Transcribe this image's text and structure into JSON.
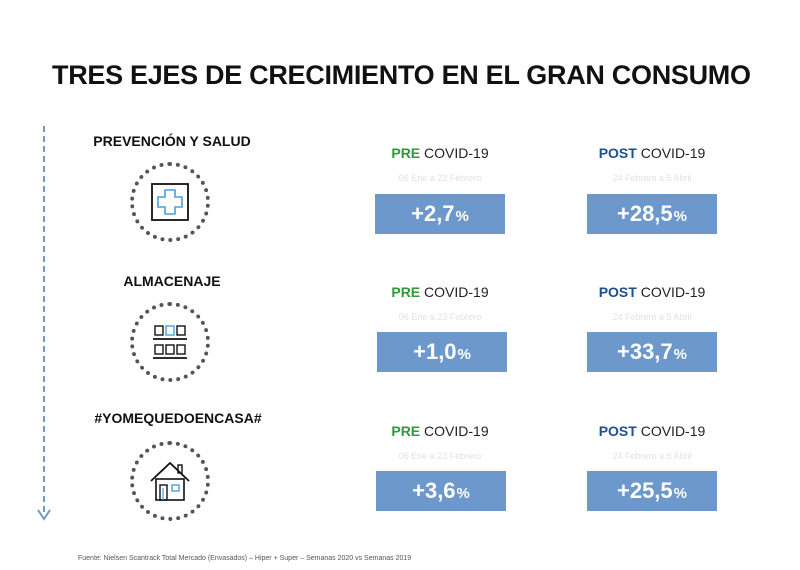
{
  "title": "TRES EJES DE CRECIMIENTO EN EL GRAN CONSUMO",
  "colors": {
    "box": "#6c98cc",
    "pre": "#2e9a3a",
    "post": "#1f4f8f",
    "arrow": "#6f99c9"
  },
  "axes": [
    {
      "label": "PREVENCIÓN Y SALUD",
      "icon": "medical-cross-icon",
      "pre": {
        "tag": "PRE",
        "covid": " COVID-19",
        "dates": "06 Ene a 23 Febrero",
        "value": "+2,7",
        "unit": "%"
      },
      "post": {
        "tag": "POST",
        "covid": " COVID-19",
        "dates": "24 Febrero a 5 Abril",
        "value": "+28,5",
        "unit": "%"
      }
    },
    {
      "label": "ALMACENAJE",
      "icon": "storage-shelves-icon",
      "pre": {
        "tag": "PRE",
        "covid": " COVID-19",
        "dates": "06 Ene a 23 Febrero",
        "value": "+1,0",
        "unit": "%"
      },
      "post": {
        "tag": "POST",
        "covid": " COVID-19",
        "dates": "24 Febrero a 5 Abril",
        "value": "+33,7",
        "unit": "%"
      }
    },
    {
      "label": "#YOMEQUEDOENCASA#",
      "icon": "house-icon",
      "pre": {
        "tag": "PRE",
        "covid": " COVID-19",
        "dates": "06 Ene a 23 Febrero",
        "value": "+3,6",
        "unit": "%"
      },
      "post": {
        "tag": "POST",
        "covid": " COVID-19",
        "dates": "24 Febrero a 5 Abril",
        "value": "+25,5",
        "unit": "%"
      }
    }
  ],
  "source": "Fuente: Nielsen Scantrack Total Mercado (Envasados) – Hiper + Super – Semanas 2020 vs Semanas 2019"
}
